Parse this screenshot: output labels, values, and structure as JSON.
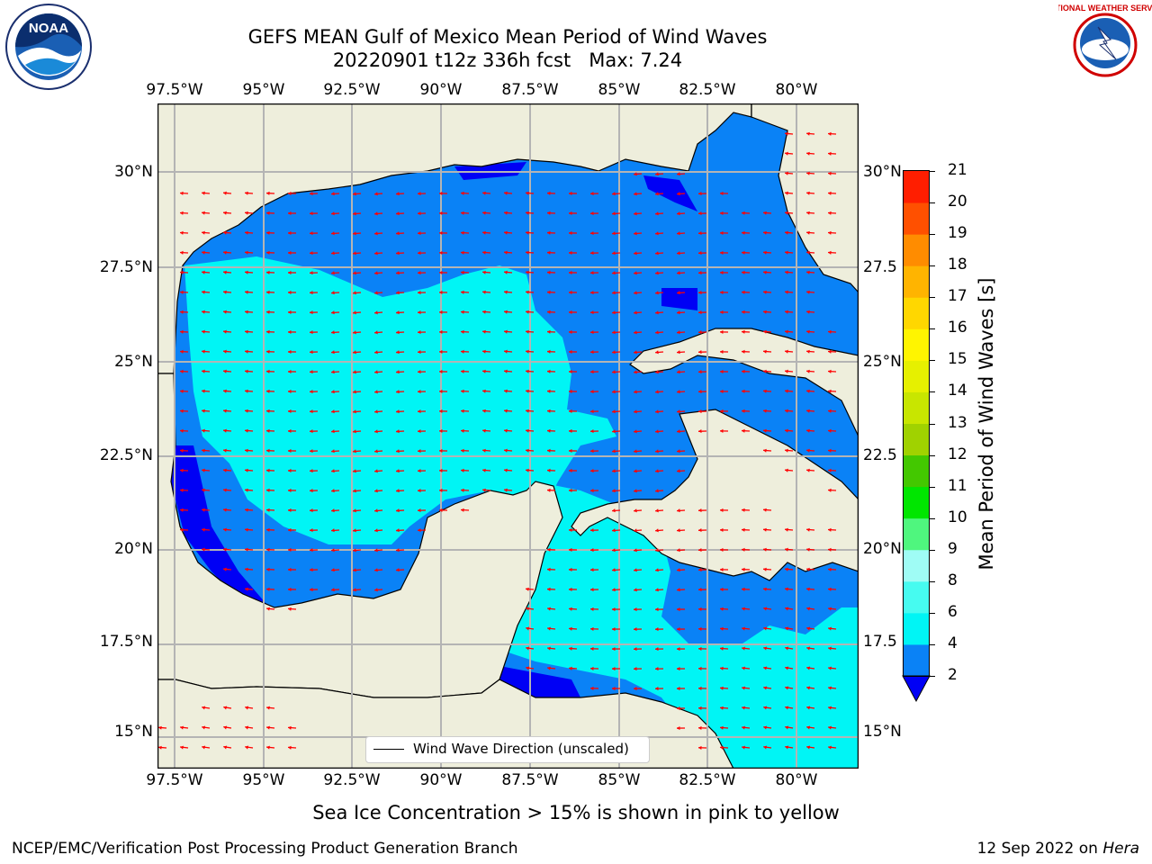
{
  "header": {
    "title_line1": "GEFS MEAN Gulf of Mexico Mean Period of Wind Waves",
    "title_line2": "20220901 t12z 336h fcst   Max: 7.24"
  },
  "logos": {
    "left": {
      "name": "noaa-logo",
      "text": "NOAA",
      "ring_text": "NATIONAL OCEANIC AND ATMOSPHERIC ADMINISTRATION · U.S. DEPARTMENT OF COMMERCE"
    },
    "right": {
      "name": "nws-logo",
      "ring_text": "NATIONAL WEATHER SERVICE"
    }
  },
  "map": {
    "lon_labels": [
      "97.5°W",
      "95°W",
      "92.5°W",
      "90°W",
      "87.5°W",
      "85°W",
      "82.5°W",
      "80°W"
    ],
    "lat_labels_left": [
      "30°N",
      "27.5°N",
      "25°N",
      "22.5°N",
      "20°N",
      "17.5°N",
      "15°N"
    ],
    "lat_labels_right": [
      "30°N",
      "27.5",
      "25°N",
      "22.5",
      "20°N",
      "17.5",
      "15°N"
    ],
    "legend_label": "Wind Wave Direction (unscaled)",
    "colors": {
      "land": "#eeeedc",
      "ocean_2_4": "#0a82f6",
      "ocean_lt2": "#0000f5",
      "ocean_4_6": "#00f5f5",
      "arrow": "#ff0000",
      "grid": "#b4b4b4"
    }
  },
  "colorbar": {
    "label": "Mean Period of Wind Waves [s]",
    "ticks": [
      "2",
      "4",
      "6",
      "8",
      "9",
      "10",
      "11",
      "12",
      "13",
      "14",
      "15",
      "16",
      "17",
      "18",
      "19",
      "20",
      "21"
    ],
    "colors": [
      "#0a82f6",
      "#00f5f5",
      "#46fbf0",
      "#9ffcf5",
      "#4ff67e",
      "#00e600",
      "#43c800",
      "#a0d200",
      "#c8e600",
      "#e6f000",
      "#fff500",
      "#ffd700",
      "#ffb400",
      "#ff8c00",
      "#ff5000",
      "#ff1e00"
    ],
    "under_color": "#0000f5"
  },
  "caption": "Sea Ice Concentration > 15% is shown in pink to yellow",
  "footer": {
    "left": "NCEP/EMC/Verification Post Processing Product Generation Branch",
    "date": "12 Sep 2022 on",
    "machine": "Hera"
  }
}
